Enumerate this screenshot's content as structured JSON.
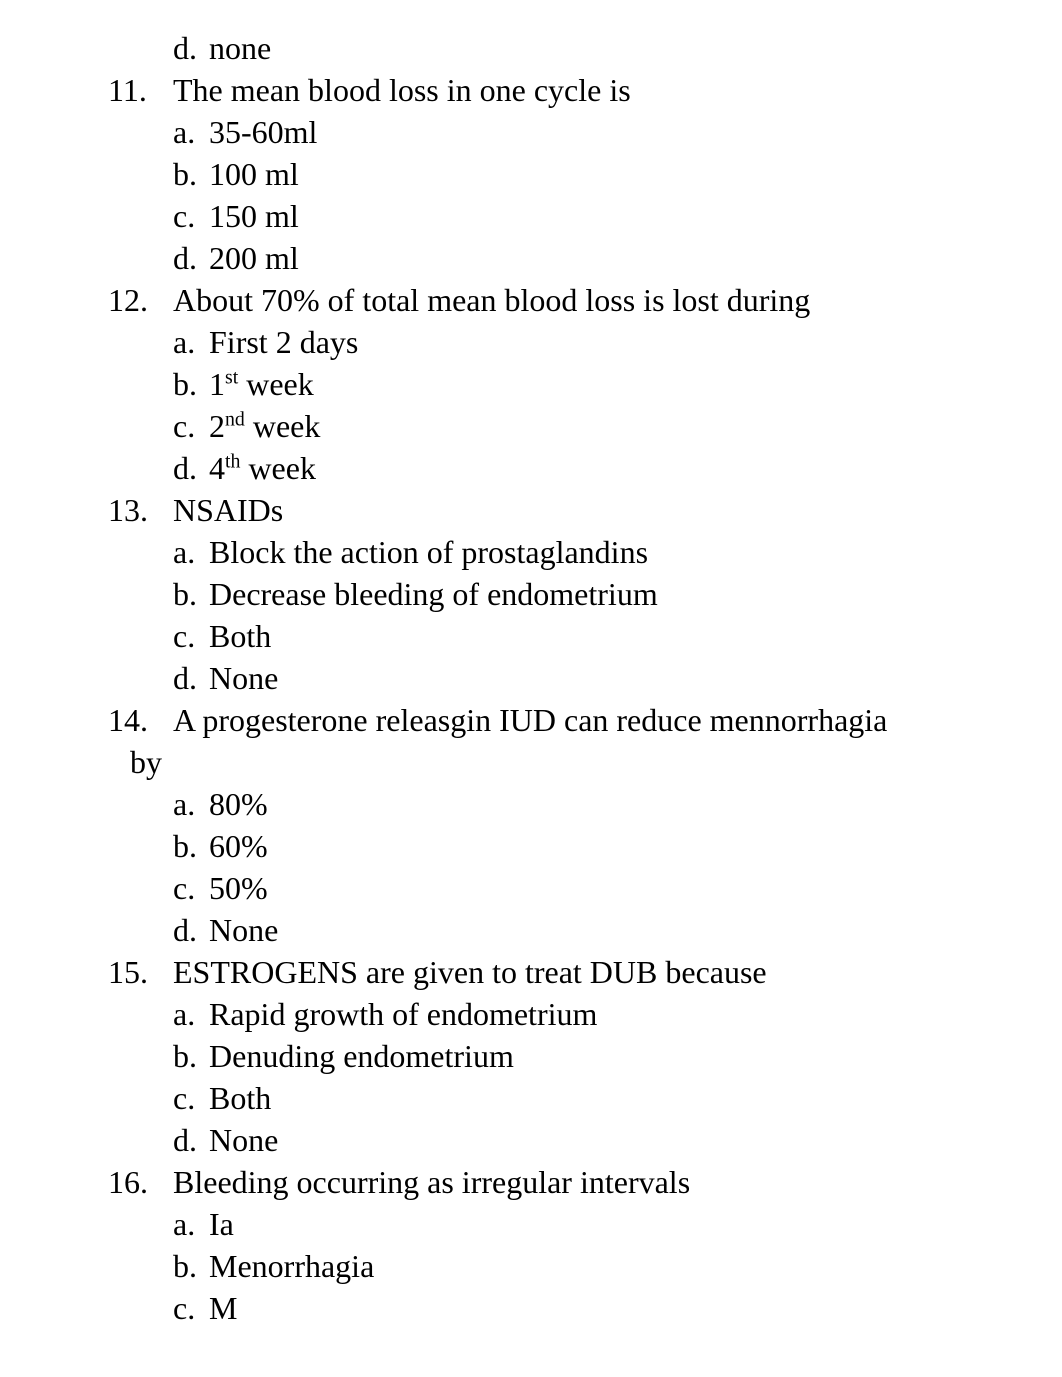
{
  "orphan_option": {
    "label": "d.",
    "text": "none"
  },
  "questions": [
    {
      "number": "11.",
      "stem": "The mean blood loss  in one cycle is",
      "options": [
        {
          "label": "a.",
          "text": "35-60ml"
        },
        {
          "label": "b.",
          "text": "100 ml"
        },
        {
          "label": "c.",
          "text": "150 ml"
        },
        {
          "label": "d.",
          "text": "200 ml"
        }
      ]
    },
    {
      "number": "12.",
      "stem": "About 70% of total mean blood loss is lost during",
      "options": [
        {
          "label": "a.",
          "text": "First 2 days"
        },
        {
          "label": "b.",
          "text_html": "1<sup>st</sup> week"
        },
        {
          "label": "c.",
          "text_html": "2<sup>nd</sup> week"
        },
        {
          "label": "d.",
          "text_html": "4<sup>th</sup> week"
        }
      ]
    },
    {
      "number": "13.",
      "stem": "NSAIDs",
      "options": [
        {
          "label": "a.",
          "text": "Block the action of prostaglandins"
        },
        {
          "label": "b.",
          "text": "Decrease bleeding of endometrium"
        },
        {
          "label": "c.",
          "text": "Both"
        },
        {
          "label": "d.",
          "text": "None"
        }
      ]
    },
    {
      "number": "14.",
      "stem": "A progesterone releasgin IUD can reduce mennorrhagia",
      "continuation": "by",
      "options": [
        {
          "label": "a.",
          "text": "80%"
        },
        {
          "label": "b.",
          "text": "60%"
        },
        {
          "label": "c.",
          "text": "50%"
        },
        {
          "label": "d.",
          "text": "None"
        }
      ]
    },
    {
      "number": "15.",
      "stem": "ESTROGENS are given to treat DUB because",
      "options": [
        {
          "label": "a.",
          "text": "Rapid growth of endometrium"
        },
        {
          "label": "b.",
          "text": "Denuding endometrium"
        },
        {
          "label": "c.",
          "text": "Both"
        },
        {
          "label": "d.",
          "text": "None"
        }
      ]
    },
    {
      "number": "16.",
      "stem": "Bleeding occurring as irregular  intervals",
      "options": [
        {
          "label": "a.",
          "text": "Ia"
        },
        {
          "label": "b.",
          "text": "Menorrhagia"
        },
        {
          "label": "c.",
          "text": "M"
        }
      ]
    }
  ],
  "colors": {
    "background": "#ffffff",
    "text": "#000000"
  },
  "typography": {
    "font_family": "Times New Roman, serif",
    "font_size_pt": 24
  }
}
